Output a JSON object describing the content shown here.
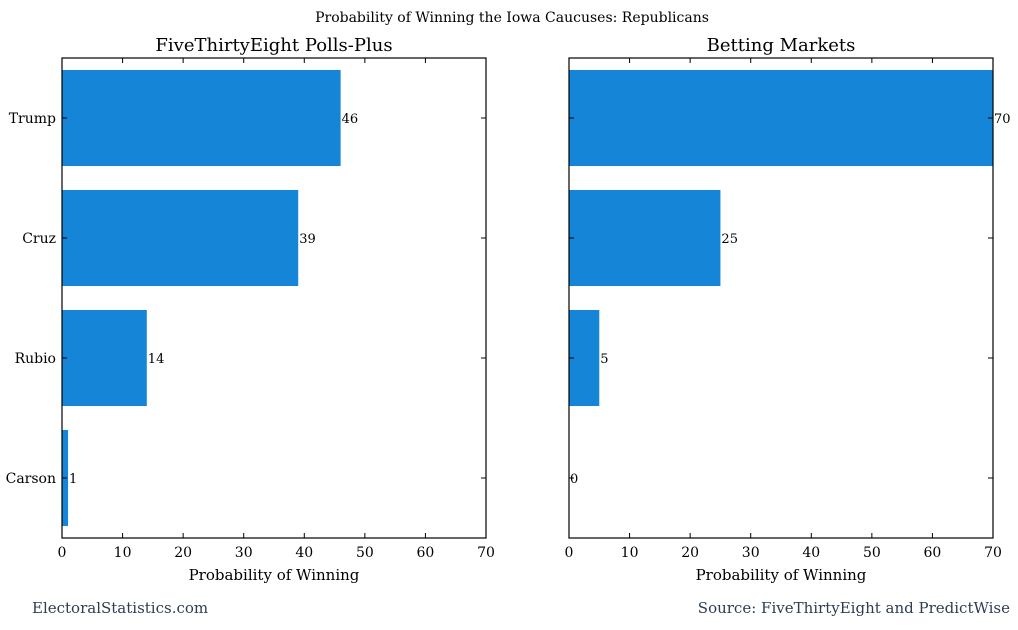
{
  "suptitle": "Probability of Winning the Iowa Caucuses: Republicans",
  "footer": {
    "left": "ElectoralStatistics.com",
    "right": "Source: FiveThirtyEight and PredictWise"
  },
  "colors": {
    "bar": "#1585d8",
    "axis": "#000000",
    "footer": "#2c3e50"
  },
  "chart_data": [
    {
      "type": "bar",
      "orientation": "horizontal",
      "title": "FiveThirtyEight Polls-Plus",
      "categories": [
        "Trump",
        "Cruz",
        "Rubio",
        "Carson"
      ],
      "values": [
        46,
        39,
        14,
        1
      ],
      "labels": [
        "46",
        "39",
        "14",
        "1"
      ],
      "xlabel": "Probability of Winning",
      "ylabel": "",
      "xlim": [
        0,
        70
      ],
      "xticks": [
        0,
        10,
        20,
        30,
        40,
        50,
        60,
        70
      ],
      "grid": false,
      "show_category_labels": true
    },
    {
      "type": "bar",
      "orientation": "horizontal",
      "title": "Betting Markets",
      "categories": [
        "Trump",
        "Cruz",
        "Rubio",
        "Carson"
      ],
      "values": [
        70,
        25,
        5,
        0
      ],
      "labels": [
        "70",
        "25",
        "5",
        "0"
      ],
      "xlabel": "Probability of Winning",
      "ylabel": "",
      "xlim": [
        0,
        70
      ],
      "xticks": [
        0,
        10,
        20,
        30,
        40,
        50,
        60,
        70
      ],
      "grid": false,
      "show_category_labels": false
    }
  ]
}
